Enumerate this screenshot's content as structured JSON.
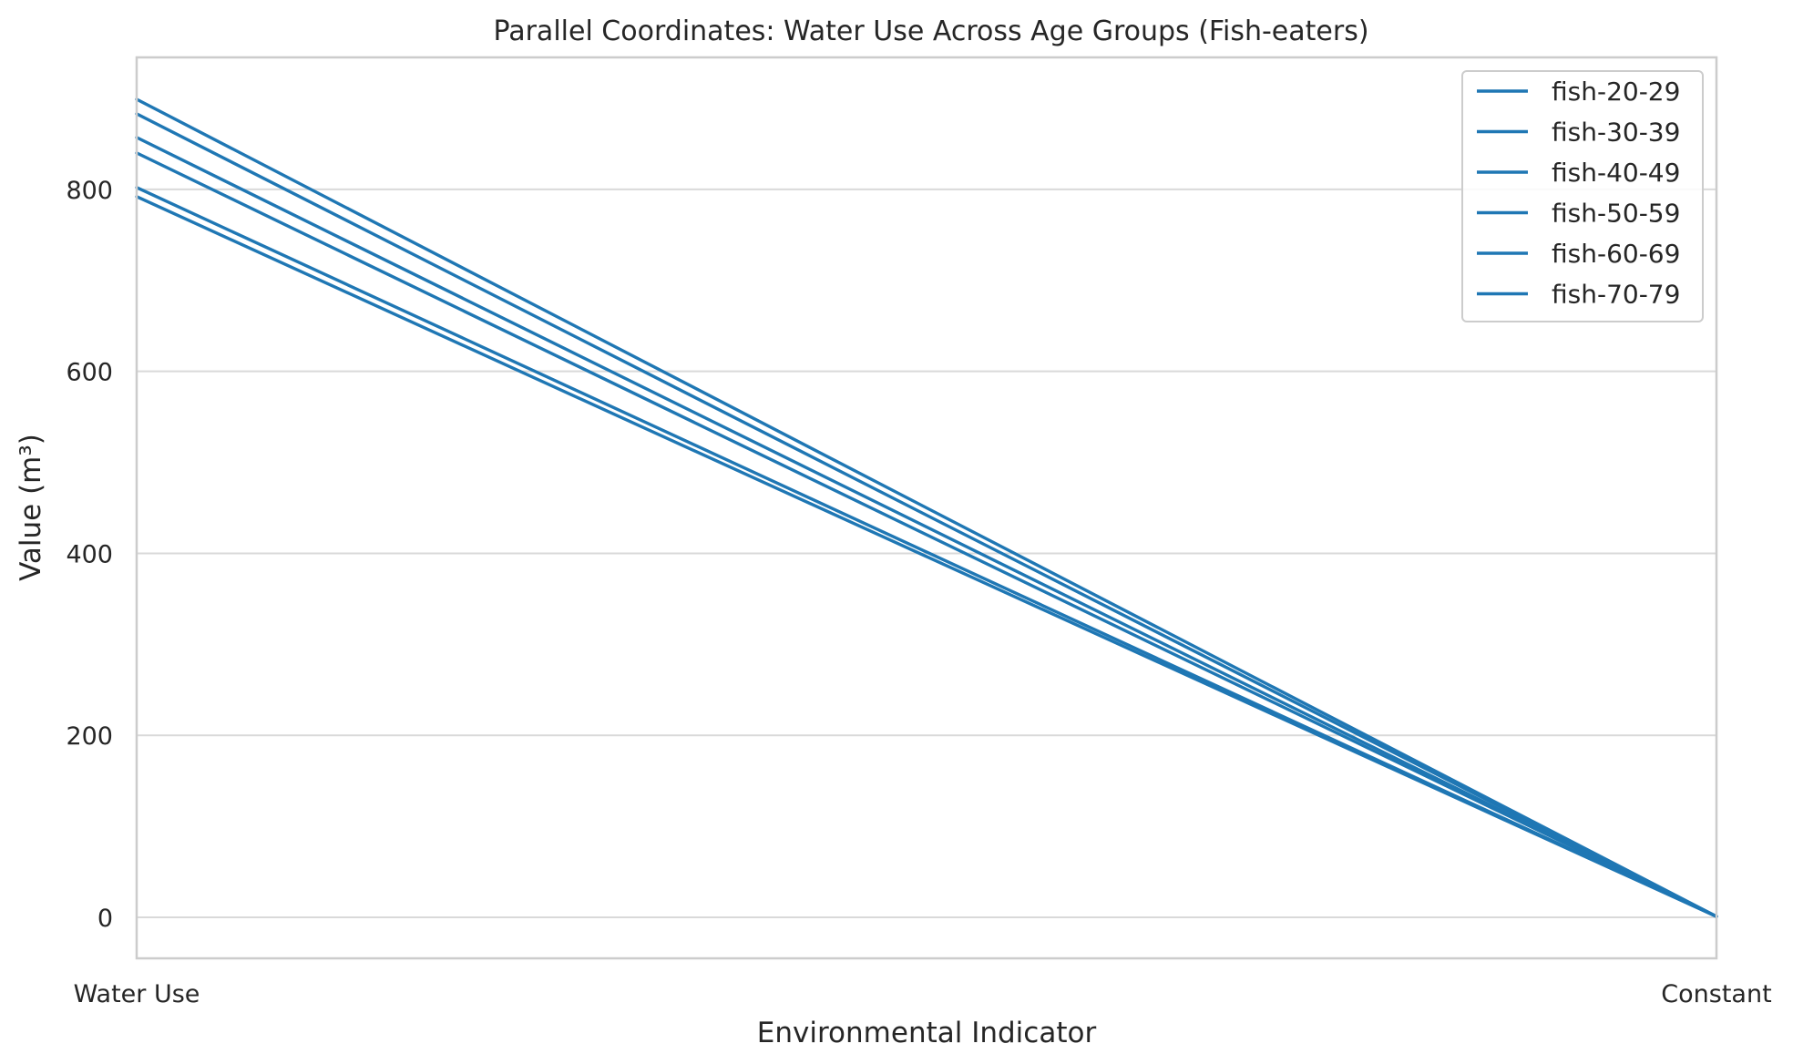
{
  "chart_data": {
    "type": "line",
    "title": "Parallel Coordinates: Water Use Across Age Groups (Fish-eaters)",
    "xlabel": "Environmental Indicator",
    "ylabel": "Value (m³)",
    "categories": [
      "Water Use",
      "Constant"
    ],
    "ylim": [
      -45,
      945
    ],
    "yticks": [
      0,
      200,
      400,
      600,
      800
    ],
    "grid": true,
    "legend_position": "top-right",
    "line_color": "#1f77b4",
    "series": [
      {
        "name": "fish-20-29",
        "values": [
          792,
          1
        ]
      },
      {
        "name": "fish-30-39",
        "values": [
          802,
          1
        ]
      },
      {
        "name": "fish-40-49",
        "values": [
          840,
          1
        ]
      },
      {
        "name": "fish-50-59",
        "values": [
          857,
          1
        ]
      },
      {
        "name": "fish-60-69",
        "values": [
          883,
          1
        ]
      },
      {
        "name": "fish-70-79",
        "values": [
          899,
          1
        ]
      }
    ]
  }
}
